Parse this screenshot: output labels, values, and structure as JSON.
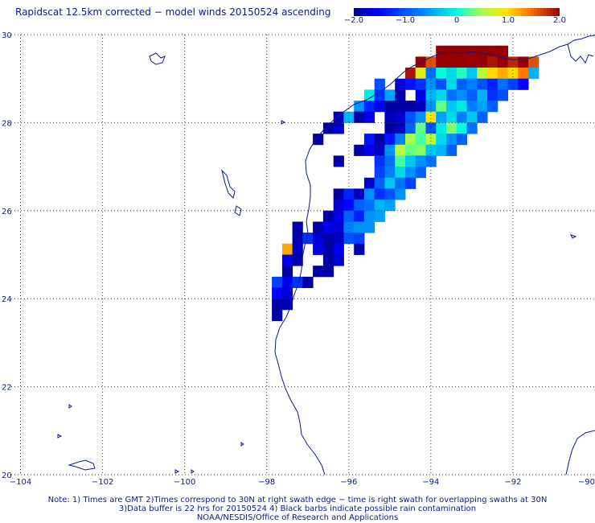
{
  "title": "Rapidscat 12.5km corrected − model winds 20150524 ascending",
  "colorbar": {
    "labels": [
      "−2.0",
      "−1.0",
      "0",
      "1.0",
      "2.0"
    ],
    "range": [
      -2.0,
      2.0
    ]
  },
  "axes": {
    "lon_labels": [
      "−104",
      "−102",
      "−100",
      "−98",
      "−96",
      "−94",
      "−92",
      "−90"
    ],
    "lat_labels": [
      "30",
      "28",
      "26",
      "24",
      "22",
      "20"
    ],
    "lon_range": [
      -104.5,
      -90
    ],
    "lat_range": [
      20,
      30
    ]
  },
  "notes": {
    "line1": "Note: 1) Times are GMT 2)Times correspond to 30N at right swath edge − time is right swath for overlapping swaths at 30N",
    "line2": "3)Data buffer is 22 hrs for 20150524 4) Black barbs indicate possible rain contamination",
    "line3": "NOAA/NESDIS/Office of Research and Applications"
  },
  "colors": {
    "text": "#0b1a8c",
    "coast": "#0b1a8c",
    "grid": "#3a3a3a"
  },
  "chart_data": {
    "type": "heatmap",
    "units": "m/s difference (corrected − model)",
    "cell_size_deg": 0.25,
    "cells": [
      [
        -93.75,
        29.625,
        2.0
      ],
      [
        -93.5,
        29.625,
        2.0
      ],
      [
        -93.25,
        29.625,
        2.0
      ],
      [
        -93.0,
        29.625,
        2.0
      ],
      [
        -92.75,
        29.625,
        2.0
      ],
      [
        -92.5,
        29.625,
        2.0
      ],
      [
        -92.25,
        29.625,
        2.0
      ],
      [
        -94.25,
        29.375,
        2.0
      ],
      [
        -94.0,
        29.375,
        1.6
      ],
      [
        -93.75,
        29.375,
        2.0
      ],
      [
        -93.5,
        29.375,
        2.0
      ],
      [
        -93.25,
        29.375,
        2.0
      ],
      [
        -93.0,
        29.375,
        2.0
      ],
      [
        -92.75,
        29.375,
        2.0
      ],
      [
        -92.5,
        29.375,
        1.9
      ],
      [
        -92.25,
        29.375,
        2.0
      ],
      [
        -92.0,
        29.375,
        1.8
      ],
      [
        -91.75,
        29.375,
        2.0
      ],
      [
        -91.5,
        29.375,
        1.6
      ],
      [
        -94.5,
        29.125,
        1.9
      ],
      [
        -94.25,
        29.125,
        0.8
      ],
      [
        -94.0,
        29.125,
        -0.8
      ],
      [
        -93.75,
        29.125,
        0.0
      ],
      [
        -93.5,
        29.125,
        -0.2
      ],
      [
        -93.25,
        29.125,
        0.1
      ],
      [
        -93.0,
        29.125,
        -0.3
      ],
      [
        -92.75,
        29.125,
        0.6
      ],
      [
        -92.5,
        29.125,
        1.0
      ],
      [
        -92.25,
        29.125,
        1.2
      ],
      [
        -92.0,
        29.125,
        1.0
      ],
      [
        -91.75,
        29.125,
        1.4
      ],
      [
        -91.5,
        29.125,
        -0.4
      ],
      [
        -95.25,
        28.875,
        -1.0
      ],
      [
        -94.75,
        28.875,
        -1.7
      ],
      [
        -94.5,
        28.875,
        -1.4
      ],
      [
        -94.25,
        28.875,
        -1.2
      ],
      [
        -94.0,
        28.875,
        -0.6
      ],
      [
        -93.75,
        28.875,
        -1.0
      ],
      [
        -93.5,
        28.875,
        -0.2
      ],
      [
        -93.25,
        28.875,
        -0.9
      ],
      [
        -93.0,
        28.875,
        -0.7
      ],
      [
        -92.75,
        28.875,
        -1.0
      ],
      [
        -92.5,
        28.875,
        -1.3
      ],
      [
        -92.25,
        28.875,
        -0.8
      ],
      [
        -92.0,
        28.875,
        -1.1
      ],
      [
        -91.75,
        28.875,
        -1.5
      ],
      [
        -95.5,
        28.625,
        -0.1
      ],
      [
        -95.25,
        28.625,
        -1.2
      ],
      [
        -95.0,
        28.625,
        -0.5
      ],
      [
        -94.75,
        28.625,
        -1.9
      ],
      [
        -94.25,
        28.625,
        -1.6
      ],
      [
        -94.0,
        28.625,
        -0.4
      ],
      [
        -93.75,
        28.625,
        -0.2
      ],
      [
        -93.5,
        28.625,
        -0.8
      ],
      [
        -93.25,
        28.625,
        -0.6
      ],
      [
        -93.0,
        28.625,
        -0.9
      ],
      [
        -92.75,
        28.625,
        -0.4
      ],
      [
        -92.5,
        28.625,
        -1.2
      ],
      [
        -92.25,
        28.625,
        -1.0
      ],
      [
        -95.75,
        28.375,
        -0.6
      ],
      [
        -95.5,
        28.375,
        -1.3
      ],
      [
        -95.25,
        28.375,
        -1.5
      ],
      [
        -95.0,
        28.375,
        -1.9
      ],
      [
        -94.75,
        28.375,
        -1.9
      ],
      [
        -94.5,
        28.375,
        -1.9
      ],
      [
        -94.25,
        28.375,
        -1.8
      ],
      [
        -94.0,
        28.375,
        -0.6
      ],
      [
        -93.75,
        28.375,
        0.3
      ],
      [
        -93.5,
        28.375,
        -0.3
      ],
      [
        -93.25,
        28.375,
        -0.1
      ],
      [
        -93.0,
        28.375,
        -0.7
      ],
      [
        -92.75,
        28.375,
        -0.5
      ],
      [
        -92.5,
        28.375,
        -0.9
      ],
      [
        -96.25,
        28.125,
        -1.8
      ],
      [
        -96.0,
        28.125,
        -0.4
      ],
      [
        -95.75,
        28.125,
        -1.9
      ],
      [
        -95.5,
        28.125,
        -1.6
      ],
      [
        -95.0,
        28.125,
        -1.8
      ],
      [
        -94.75,
        28.125,
        -1.7
      ],
      [
        -94.5,
        28.125,
        -1.0
      ],
      [
        -94.25,
        28.125,
        -0.6
      ],
      [
        -94.0,
        28.125,
        0.9
      ],
      [
        -93.75,
        28.125,
        -0.5
      ],
      [
        -93.5,
        28.125,
        -0.2
      ],
      [
        -93.25,
        28.125,
        -0.7
      ],
      [
        -93.0,
        28.125,
        -0.3
      ],
      [
        -92.75,
        28.125,
        -0.9
      ],
      [
        -96.5,
        27.875,
        -1.9
      ],
      [
        -96.25,
        27.875,
        -1.7
      ],
      [
        -95.0,
        27.875,
        -1.9
      ],
      [
        -94.75,
        27.875,
        -1.8
      ],
      [
        -94.5,
        27.875,
        -0.9
      ],
      [
        -94.25,
        27.875,
        0.3
      ],
      [
        -94.0,
        27.875,
        -1.0
      ],
      [
        -93.75,
        27.875,
        -0.1
      ],
      [
        -93.5,
        27.875,
        0.4
      ],
      [
        -93.25,
        27.875,
        0.0
      ],
      [
        -93.0,
        27.875,
        -0.8
      ],
      [
        -96.75,
        27.625,
        -1.9
      ],
      [
        -95.5,
        27.625,
        -1.4
      ],
      [
        -95.25,
        27.625,
        -1.9
      ],
      [
        -95.0,
        27.625,
        -1.4
      ],
      [
        -94.75,
        27.625,
        -0.7
      ],
      [
        -94.5,
        27.625,
        0.5
      ],
      [
        -94.25,
        27.625,
        0.2
      ],
      [
        -94.0,
        27.625,
        0.6
      ],
      [
        -93.75,
        27.625,
        -0.2
      ],
      [
        -93.5,
        27.625,
        -0.6
      ],
      [
        -93.25,
        27.625,
        -0.9
      ],
      [
        -95.75,
        27.375,
        -1.9
      ],
      [
        -95.5,
        27.375,
        -1.6
      ],
      [
        -95.25,
        27.375,
        -1.8
      ],
      [
        -95.0,
        27.375,
        -0.6
      ],
      [
        -94.75,
        27.375,
        0.6
      ],
      [
        -94.5,
        27.375,
        0.3
      ],
      [
        -94.25,
        27.375,
        0.4
      ],
      [
        -94.0,
        27.375,
        -0.3
      ],
      [
        -93.75,
        27.375,
        -0.4
      ],
      [
        -93.5,
        27.375,
        -0.9
      ],
      [
        -96.25,
        27.125,
        -1.9
      ],
      [
        -95.25,
        27.125,
        -1.2
      ],
      [
        -95.0,
        27.125,
        -0.8
      ],
      [
        -94.75,
        27.125,
        0.2
      ],
      [
        -94.5,
        27.125,
        -0.3
      ],
      [
        -94.25,
        27.125,
        -0.6
      ],
      [
        -94.0,
        27.125,
        -0.8
      ],
      [
        -95.25,
        26.875,
        -1.1
      ],
      [
        -95.0,
        26.875,
        -0.7
      ],
      [
        -94.75,
        26.875,
        -0.2
      ],
      [
        -94.5,
        26.875,
        -0.6
      ],
      [
        -94.25,
        26.875,
        -0.9
      ],
      [
        -95.5,
        26.625,
        -1.7
      ],
      [
        -95.25,
        26.625,
        -0.9
      ],
      [
        -95.0,
        26.625,
        -0.3
      ],
      [
        -94.75,
        26.625,
        -0.8
      ],
      [
        -94.5,
        26.625,
        -1.1
      ],
      [
        -96.25,
        26.375,
        -1.9
      ],
      [
        -96.0,
        26.375,
        -1.3
      ],
      [
        -95.75,
        26.375,
        -1.8
      ],
      [
        -95.5,
        26.375,
        -0.6
      ],
      [
        -95.25,
        26.375,
        -1.2
      ],
      [
        -95.0,
        26.375,
        -1.0
      ],
      [
        -94.75,
        26.375,
        -0.6
      ],
      [
        -96.25,
        26.125,
        -1.7
      ],
      [
        -96.0,
        26.125,
        -1.5
      ],
      [
        -95.75,
        26.125,
        -0.9
      ],
      [
        -95.5,
        26.125,
        -0.8
      ],
      [
        -95.25,
        26.125,
        -0.4
      ],
      [
        -95.0,
        26.125,
        -0.5
      ],
      [
        -96.5,
        25.875,
        -1.9
      ],
      [
        -96.25,
        25.875,
        -1.6
      ],
      [
        -96.0,
        25.875,
        -0.9
      ],
      [
        -95.75,
        25.875,
        -1.3
      ],
      [
        -95.5,
        25.875,
        -0.6
      ],
      [
        -95.25,
        25.875,
        -0.5
      ],
      [
        -97.25,
        25.625,
        -1.9
      ],
      [
        -96.75,
        25.625,
        -1.9
      ],
      [
        -96.5,
        25.625,
        -1.6
      ],
      [
        -96.25,
        25.625,
        -1.7
      ],
      [
        -96.0,
        25.625,
        -0.7
      ],
      [
        -95.75,
        25.625,
        -0.6
      ],
      [
        -95.5,
        25.625,
        -0.6
      ],
      [
        -97.25,
        25.375,
        -1.9
      ],
      [
        -97.0,
        25.375,
        -1.2
      ],
      [
        -96.75,
        25.375,
        -1.7
      ],
      [
        -96.5,
        25.375,
        -1.9
      ],
      [
        -96.25,
        25.375,
        -1.8
      ],
      [
        -96.0,
        25.375,
        -1.0
      ],
      [
        -95.75,
        25.375,
        -1.1
      ],
      [
        -97.5,
        25.125,
        1.2
      ],
      [
        -97.25,
        25.125,
        -1.8
      ],
      [
        -96.75,
        25.125,
        -1.6
      ],
      [
        -96.5,
        25.125,
        -1.9
      ],
      [
        -96.25,
        25.125,
        -1.6
      ],
      [
        -95.75,
        25.125,
        -1.9
      ],
      [
        -97.5,
        24.875,
        -1.6
      ],
      [
        -97.25,
        24.875,
        -1.9
      ],
      [
        -96.5,
        24.875,
        -1.9
      ],
      [
        -96.25,
        24.875,
        -1.7
      ],
      [
        -97.5,
        24.625,
        -1.9
      ],
      [
        -96.75,
        24.625,
        -1.9
      ],
      [
        -96.5,
        24.625,
        -1.9
      ],
      [
        -97.75,
        24.375,
        -1.1
      ],
      [
        -97.5,
        24.375,
        -1.6
      ],
      [
        -97.25,
        24.375,
        -1.2
      ],
      [
        -97.0,
        24.375,
        -1.9
      ],
      [
        -97.75,
        24.125,
        -1.5
      ],
      [
        -97.5,
        24.125,
        -1.7
      ],
      [
        -97.75,
        23.875,
        -1.9
      ],
      [
        -97.5,
        23.875,
        -1.8
      ],
      [
        -97.75,
        23.625,
        -1.9
      ]
    ]
  }
}
